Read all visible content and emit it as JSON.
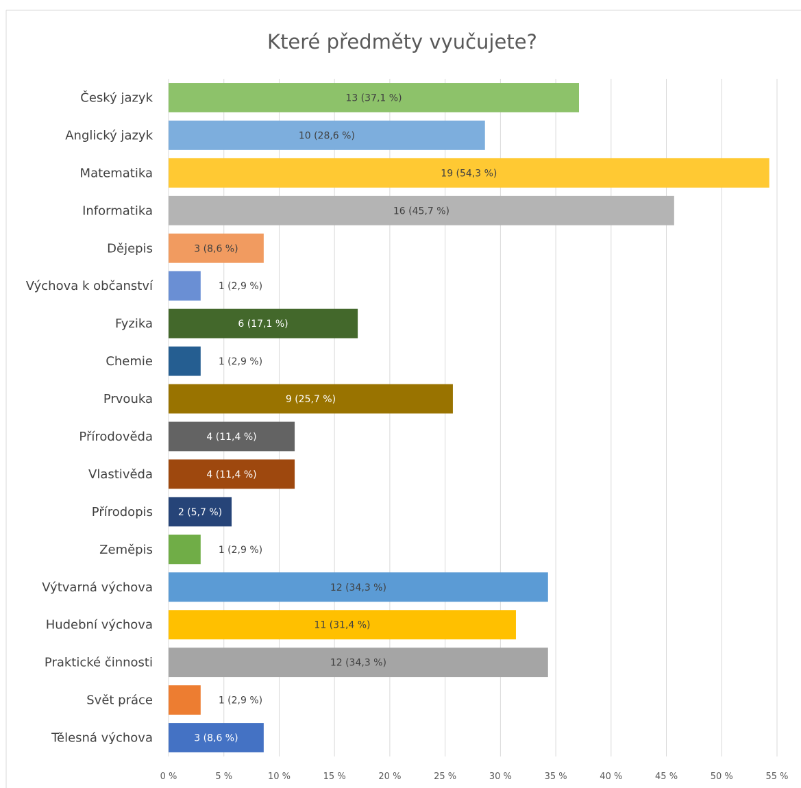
{
  "chart_data": {
    "type": "bar",
    "orientation": "horizontal",
    "title": "Které předměty vyučujete?",
    "xlabel": "",
    "ylabel": "",
    "xlim": [
      0,
      55
    ],
    "x_tick_values": [
      0,
      5,
      10,
      15,
      20,
      25,
      30,
      35,
      40,
      45,
      50,
      55
    ],
    "x_tick_labels": [
      "0 %",
      "5 %",
      "10 %",
      "15 %",
      "20 %",
      "25 %",
      "30 %",
      "35 %",
      "40 %",
      "45 %",
      "50 %",
      "55 %"
    ],
    "grid": true,
    "legend": "none",
    "categories": [
      "Český jazyk",
      "Anglický jazyk",
      "Matematika",
      "Informatika",
      "Dějepis",
      "Výchova k občanství",
      "Fyzika",
      "Chemie",
      "Prvouka",
      "Přírodověda",
      "Vlastivěda",
      "Přírodopis",
      "Zeměpis",
      "Výtvarná výchova",
      "Hudební výchova",
      "Praktické činnosti",
      "Svět práce",
      "Tělesná výchova"
    ],
    "values": [
      37.1,
      28.6,
      54.3,
      45.7,
      8.6,
      2.9,
      17.1,
      2.9,
      25.7,
      11.4,
      11.4,
      5.7,
      2.9,
      34.3,
      31.4,
      34.3,
      2.9,
      8.6
    ],
    "counts": [
      13,
      10,
      19,
      16,
      3,
      1,
      6,
      1,
      9,
      4,
      4,
      2,
      1,
      12,
      11,
      12,
      1,
      3
    ],
    "data_labels": [
      "13 (37,1 %)",
      "10 (28,6 %)",
      "19 (54,3 %)",
      "16 (45,7 %)",
      "3 (8,6 %)",
      "1 (2,9 %)",
      "6 (17,1 %)",
      "1 (2,9 %)",
      "9 (25,7 %)",
      "4 (11,4 %)",
      "4 (11,4 %)",
      "2 (5,7 %)",
      "1 (2,9 %)",
      "12 (34,3 %)",
      "11 (31,4 %)",
      "12 (34,3 %)",
      "1 (2,9 %)",
      "3 (8,6 %)"
    ],
    "colors": [
      "#8DC26A",
      "#7DAEDD",
      "#FFC933",
      "#B4B4B4",
      "#F19B60",
      "#6A8FD4",
      "#43682B",
      "#255E91",
      "#997300",
      "#636363",
      "#9E480E",
      "#264478",
      "#70AD47",
      "#5B9BD5",
      "#FFC000",
      "#A5A5A5",
      "#ED7D31",
      "#4472C4"
    ],
    "label_colors": [
      "#404040",
      "#404040",
      "#404040",
      "#404040",
      "#404040",
      "#404040",
      "#ffffff",
      "#404040",
      "#ffffff",
      "#ffffff",
      "#ffffff",
      "#ffffff",
      "#404040",
      "#404040",
      "#404040",
      "#404040",
      "#404040",
      "#ffffff"
    ],
    "label_inside": [
      true,
      true,
      true,
      true,
      true,
      false,
      true,
      false,
      true,
      true,
      true,
      true,
      false,
      true,
      true,
      true,
      false,
      true
    ]
  }
}
